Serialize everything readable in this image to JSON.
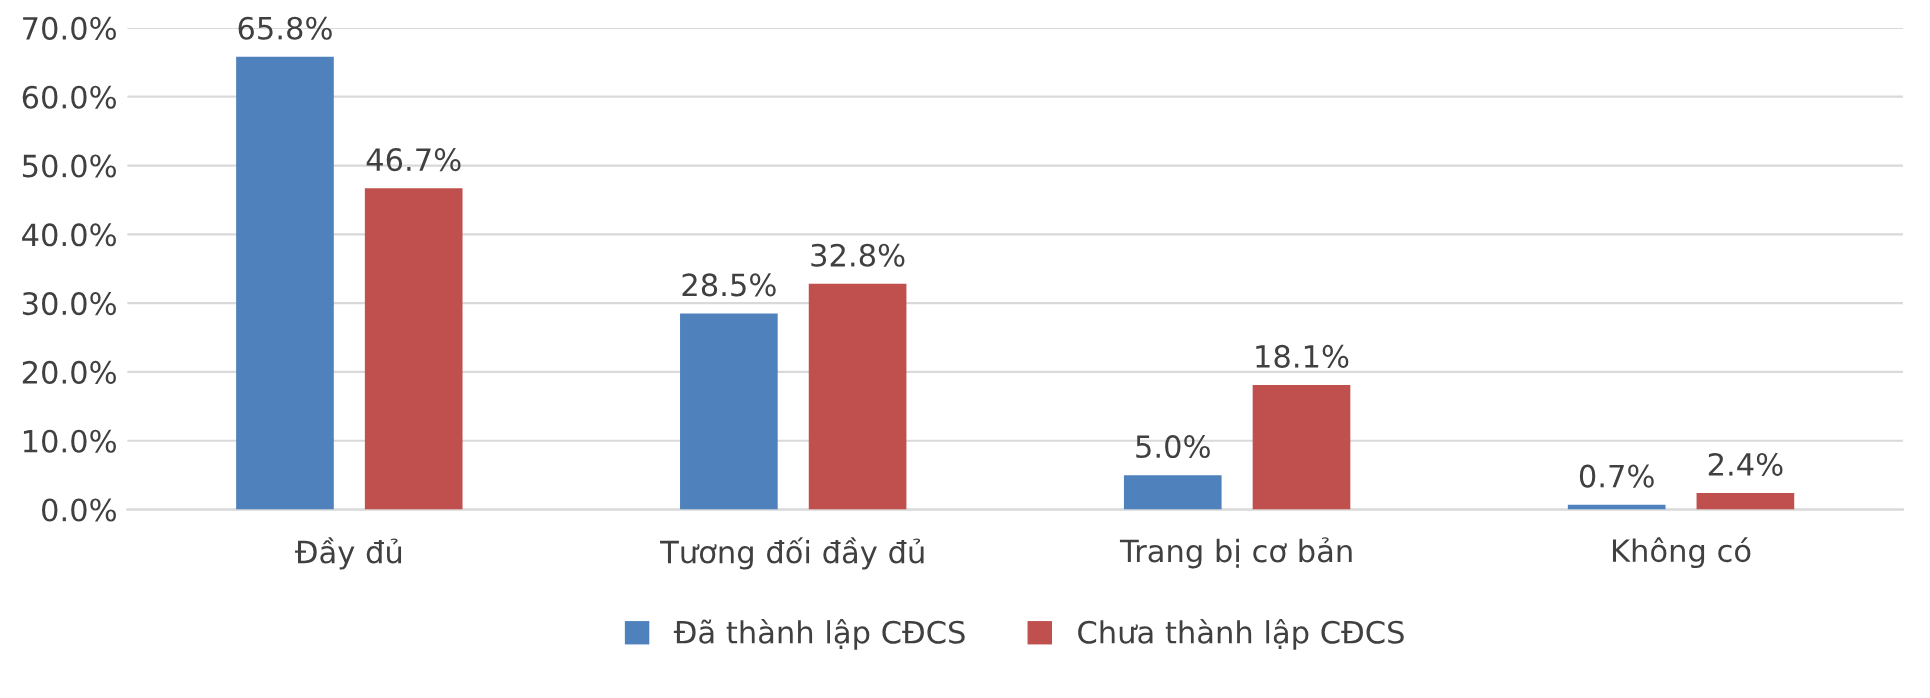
{
  "chart_data": {
    "type": "bar",
    "categories": [
      "Đầy đủ",
      "Tương đối đầy đủ",
      "Trang bị cơ bản",
      "Không có"
    ],
    "series": [
      {
        "name": "Đã thành lập CĐCS",
        "color": "#4f81bd",
        "values": [
          65.8,
          28.5,
          5.0,
          0.7
        ],
        "value_labels": [
          "65.8%",
          "28.5%",
          "5.0%",
          "0.7%"
        ]
      },
      {
        "name": "Chưa thành lập CĐCS",
        "color": "#c0504d",
        "values": [
          46.7,
          32.8,
          18.1,
          2.4
        ],
        "value_labels": [
          "46.7%",
          "32.8%",
          "18.1%",
          "2.4%"
        ]
      }
    ],
    "ylim": [
      0,
      70
    ],
    "yticks": [
      {
        "value": 0,
        "label": "0.0%"
      },
      {
        "value": 10,
        "label": "10.0%"
      },
      {
        "value": 20,
        "label": "20.0%"
      },
      {
        "value": 30,
        "label": "30.0%"
      },
      {
        "value": 40,
        "label": "40.0%"
      },
      {
        "value": 50,
        "label": "50.0%"
      },
      {
        "value": 60,
        "label": "60.0%"
      },
      {
        "value": 70,
        "label": "70.0%"
      }
    ],
    "grid": "y",
    "legend": "bottom"
  }
}
